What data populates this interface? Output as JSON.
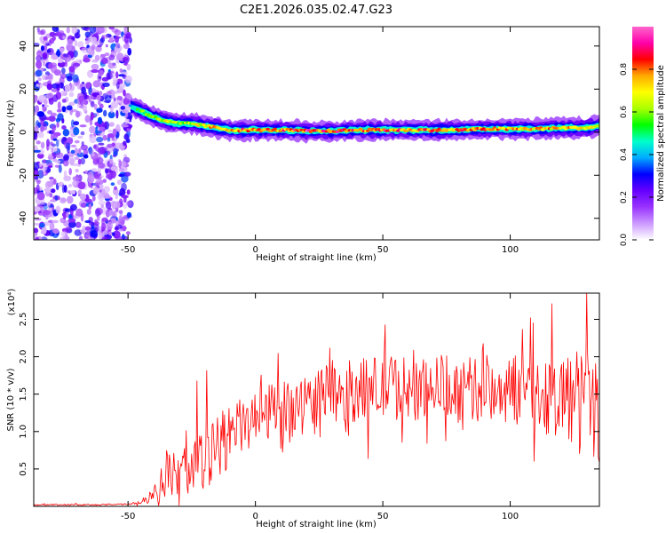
{
  "chart_data": [
    {
      "type": "heatmap",
      "title": "C2E1.2026.035.02.47.G23",
      "xlabel": "Height of straight line (km)",
      "ylabel": "Frequency (Hz)",
      "xlim": [
        -87,
        135
      ],
      "ylim": [
        -50,
        49
      ],
      "xticks": [
        -50,
        0,
        50,
        100
      ],
      "xtick_labels": [
        "-50",
        "0",
        "50",
        "100"
      ],
      "yticks": [
        -40,
        -20,
        0,
        20,
        40
      ],
      "ytick_labels": [
        "-40",
        "-20",
        "0",
        "20",
        "40"
      ],
      "colorbar": {
        "label": "Normalized spectral amplitude",
        "range": [
          0,
          1
        ],
        "ticks": [
          0.0,
          0.2,
          0.4,
          0.6,
          0.8
        ],
        "tick_labels": [
          "0.0",
          "0.2",
          "0.4",
          "0.6",
          "0.8"
        ],
        "colormap": [
          "#ffffff",
          "#cc99ff",
          "#9933ff",
          "#6600ff",
          "#0000ff",
          "#00aaff",
          "#00ffcc",
          "#00ff00",
          "#aaff00",
          "#ffff00",
          "#ffaa00",
          "#ff0000",
          "#ff00aa",
          "#ff66cc"
        ]
      },
      "noise_region_x": [
        -87,
        -49
      ],
      "ridge": {
        "x": [
          -49,
          -45,
          -40,
          -35,
          -30,
          -25,
          -20,
          -15,
          -10,
          -5,
          0,
          10,
          20,
          30,
          40,
          50,
          60,
          70,
          80,
          90,
          100,
          110,
          120,
          130,
          135
        ],
        "freq": [
          12,
          10,
          7,
          5,
          4,
          4,
          3,
          2,
          1,
          1,
          1,
          1,
          0.5,
          0.5,
          1,
          1,
          1,
          1,
          1,
          1.5,
          1.5,
          1.5,
          2,
          2,
          3
        ],
        "amplitude": [
          0.45,
          0.6,
          0.7,
          0.7,
          0.65,
          0.7,
          0.75,
          0.8,
          0.8,
          0.85,
          0.85,
          0.85,
          0.95,
          0.9,
          0.9,
          0.9,
          0.85,
          0.85,
          0.85,
          0.85,
          0.8,
          0.8,
          0.8,
          0.75,
          0.7
        ]
      }
    },
    {
      "type": "line",
      "xlabel": "Height of straight line (km)",
      "ylabel": "SNR (10 * v/v)",
      "ylabel_multiplier": "(x10⁴)",
      "xlim": [
        -87,
        135
      ],
      "ylim": [
        0,
        2.85
      ],
      "xticks": [
        -50,
        0,
        50,
        100
      ],
      "xtick_labels": [
        "-50",
        "0",
        "50",
        "100"
      ],
      "yticks": [
        0.5,
        1.0,
        1.5,
        2.0,
        2.5
      ],
      "ytick_labels": [
        "0.5",
        "1.0",
        "1.5",
        "2.0",
        "2.5"
      ],
      "series": [
        {
          "name": "SNR",
          "color": "#ff0000",
          "x": [
            -87,
            -60,
            -50,
            -45,
            -42,
            -40,
            -36,
            -33,
            -30,
            -28,
            -25,
            -22,
            -20,
            -17,
            -14,
            -11,
            -8,
            -5,
            -2,
            0,
            3,
            6,
            9,
            12,
            15,
            18,
            21,
            24,
            28,
            32,
            36,
            40,
            45,
            50,
            55,
            60,
            65,
            70,
            75,
            80,
            85,
            90,
            95,
            100,
            105,
            110,
            115,
            120,
            124,
            127,
            130,
            132,
            135
          ],
          "mean": [
            0.02,
            0.02,
            0.03,
            0.05,
            0.12,
            0.2,
            0.35,
            0.45,
            0.38,
            0.5,
            0.55,
            0.6,
            0.5,
            0.7,
            0.85,
            0.95,
            0.95,
            1.1,
            1.1,
            1.15,
            1.2,
            1.25,
            1.2,
            1.2,
            1.3,
            1.35,
            1.4,
            1.45,
            1.5,
            1.5,
            1.55,
            1.55,
            1.55,
            1.6,
            1.6,
            1.55,
            1.6,
            1.6,
            1.6,
            1.55,
            1.55,
            1.6,
            1.55,
            1.55,
            1.55,
            1.5,
            1.5,
            1.5,
            1.45,
            1.4,
            1.4,
            1.35,
            1.3
          ],
          "spread": [
            0.01,
            0.01,
            0.01,
            0.03,
            0.08,
            0.15,
            0.25,
            0.3,
            0.3,
            0.35,
            0.4,
            0.45,
            0.4,
            0.4,
            0.45,
            0.45,
            0.4,
            0.4,
            0.4,
            0.35,
            0.35,
            0.4,
            0.45,
            0.45,
            0.4,
            0.4,
            0.4,
            0.4,
            0.4,
            0.4,
            0.4,
            0.45,
            0.45,
            0.45,
            0.45,
            0.45,
            0.45,
            0.45,
            0.45,
            0.45,
            0.45,
            0.45,
            0.45,
            0.45,
            0.5,
            0.5,
            0.55,
            0.6,
            0.65,
            0.7,
            0.75,
            0.8,
            0.8
          ],
          "peaks": [
            {
              "x": -23,
              "y": 1.68
            },
            {
              "x": -19,
              "y": 1.82
            },
            {
              "x": 9,
              "y": 2.05
            },
            {
              "x": 51,
              "y": 2.43
            },
            {
              "x": 130,
              "y": 2.85
            }
          ]
        }
      ]
    }
  ]
}
